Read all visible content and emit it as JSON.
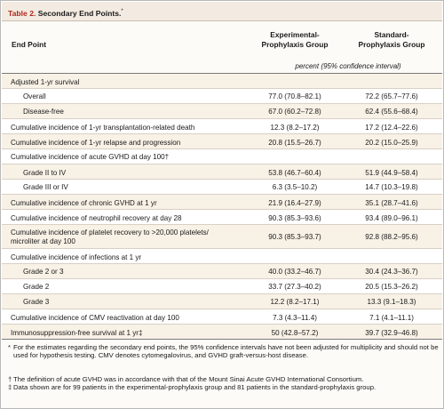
{
  "table": {
    "label": "Table 2.",
    "title": "Secondary End Points.",
    "title_mark": "*"
  },
  "header": {
    "endpoint": "End Point",
    "col1_line1": "Experimental-",
    "col1_line2": "Prophylaxis Group",
    "col2_line1": "Standard-",
    "col2_line2": "Prophylaxis Group",
    "units": "percent (95% confidence interval)"
  },
  "rows": [
    {
      "label": "Adjusted 1-yr survival",
      "v1": "",
      "v2": "",
      "indent": false
    },
    {
      "label": "Overall",
      "v1": "77.0 (70.8–82.1)",
      "v2": "72.2 (65.7–77.6)",
      "indent": true
    },
    {
      "label": "Disease-free",
      "v1": "67.0 (60.2–72.8)",
      "v2": "62.4 (55.6–68.4)",
      "indent": true
    },
    {
      "label": "Cumulative incidence of 1-yr transplantation-related death",
      "v1": "12.3 (8.2–17.2)",
      "v2": "17.2 (12.4–22.6)",
      "indent": false
    },
    {
      "label": "Cumulative incidence of 1-yr relapse and progression",
      "v1": "20.8 (15.5–26.7)",
      "v2": "20.2 (15.0–25.9)",
      "indent": false
    },
    {
      "label": "Cumulative incidence of acute GVHD at day 100†",
      "v1": "",
      "v2": "",
      "indent": false
    },
    {
      "label": "Grade II to IV",
      "v1": "53.8 (46.7–60.4)",
      "v2": "51.9 (44.9–58.4)",
      "indent": true
    },
    {
      "label": "Grade III or IV",
      "v1": "6.3 (3.5–10.2)",
      "v2": "14.7 (10.3–19.8)",
      "indent": true
    },
    {
      "label": "Cumulative incidence of chronic GVHD at 1 yr",
      "v1": "21.9 (16.4–27.9)",
      "v2": "35.1 (28.7–41.6)",
      "indent": false
    },
    {
      "label": "Cumulative incidence of neutrophil recovery at day 28",
      "v1": "90.3 (85.3–93.6)",
      "v2": "93.4 (89.0–96.1)",
      "indent": false
    },
    {
      "label": "Cumulative incidence of platelet recovery to >20,000 platelets/",
      "label2": "microliter at day 100",
      "v1": "90.3 (85.3–93.7)",
      "v2": "92.8 (88.2–95.6)",
      "indent": false
    },
    {
      "label": "Cumulative incidence of infections at 1 yr",
      "v1": "",
      "v2": "",
      "indent": false
    },
    {
      "label": "Grade 2 or 3",
      "v1": "40.0 (33.2–46.7)",
      "v2": "30.4 (24.3–36.7)",
      "indent": true
    },
    {
      "label": "Grade 2",
      "v1": "33.7 (27.3–40.2)",
      "v2": "20.5 (15.3–26.2)",
      "indent": true
    },
    {
      "label": "Grade 3",
      "v1": "12.2 (8.2–17.1)",
      "v2": "13.3 (9.1–18.3)",
      "indent": true
    },
    {
      "label": "Cumulative incidence of CMV reactivation at day 100",
      "v1": "7.3 (4.3–11.4)",
      "v2": "7.1 (4.1–11.1)",
      "indent": false
    },
    {
      "label": "Immunosuppression-free survival at 1 yr‡",
      "v1": "50 (42.8–57.2)",
      "v2": "39.7 (32.9–46.8)",
      "indent": false
    }
  ],
  "footnotes": [
    {
      "mark": "*",
      "text": "For the estimates regarding the secondary end points, the 95% confidence intervals have not been adjusted for multiplicity and should not be used for hypothesis testing. CMV denotes cytomegalovirus, and GVHD graft-versus-host disease."
    },
    {
      "mark": "†",
      "text": "The definition of acute GVHD was in accordance with that of the Mount Sinai Acute GVHD International Consortium."
    },
    {
      "mark": "‡",
      "text": "Data shown are for 99 patients in the experimental-prophylaxis group and 81 patients in the standard-prophylaxis group."
    }
  ],
  "colors": {
    "label_red": "#b0281c",
    "title_bg": "#f3ebe1",
    "row_shade": "#f8f1e6"
  }
}
